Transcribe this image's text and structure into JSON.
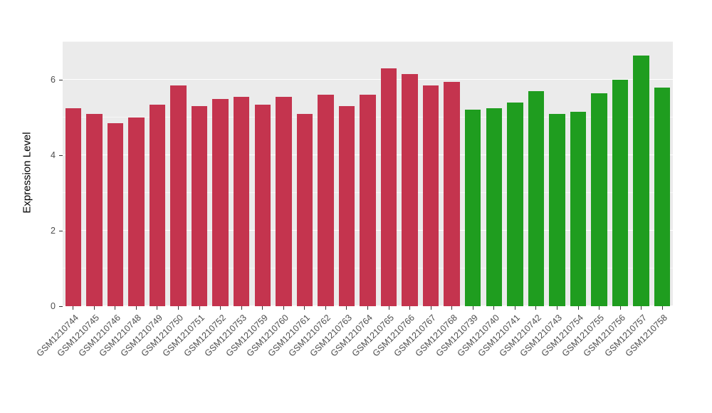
{
  "chart_data": {
    "type": "bar",
    "title": "",
    "xlabel": "",
    "ylabel": "Expression Level",
    "ylim": [
      0,
      7.02
    ],
    "ytick_values": [
      0,
      2,
      4,
      6
    ],
    "ytick_labels": [
      "0",
      "2",
      "4",
      "6"
    ],
    "minor_tick_values": [
      1,
      3,
      5,
      7
    ],
    "grid": true,
    "legend": "none",
    "panel_bg": "#EBEBEB",
    "grid_major_color": "#FFFFFF",
    "grid_minor_color": "#FFFFFF",
    "tick_color": "#333333",
    "axis_label_color": "#4D4D4D",
    "groups": {
      "group1": {
        "color": "#C4344E"
      },
      "group2": {
        "color": "#1F9D1F"
      }
    },
    "bars": [
      {
        "label": "GSM1210744",
        "value": 5.25,
        "group": "group1"
      },
      {
        "label": "GSM1210745",
        "value": 5.1,
        "group": "group1"
      },
      {
        "label": "GSM1210746",
        "value": 4.85,
        "group": "group1"
      },
      {
        "label": "GSM1210748",
        "value": 5.0,
        "group": "group1"
      },
      {
        "label": "GSM1210749",
        "value": 5.35,
        "group": "group1"
      },
      {
        "label": "GSM1210750",
        "value": 5.85,
        "group": "group1"
      },
      {
        "label": "GSM1210751",
        "value": 5.3,
        "group": "group1"
      },
      {
        "label": "GSM1210752",
        "value": 5.5,
        "group": "group1"
      },
      {
        "label": "GSM1210753",
        "value": 5.55,
        "group": "group1"
      },
      {
        "label": "GSM1210759",
        "value": 5.35,
        "group": "group1"
      },
      {
        "label": "GSM1210760",
        "value": 5.55,
        "group": "group1"
      },
      {
        "label": "GSM1210761",
        "value": 5.1,
        "group": "group1"
      },
      {
        "label": "GSM1210762",
        "value": 5.6,
        "group": "group1"
      },
      {
        "label": "GSM1210763",
        "value": 5.3,
        "group": "group1"
      },
      {
        "label": "GSM1210764",
        "value": 5.6,
        "group": "group1"
      },
      {
        "label": "GSM1210765",
        "value": 6.3,
        "group": "group1"
      },
      {
        "label": "GSM1210766",
        "value": 6.15,
        "group": "group1"
      },
      {
        "label": "GSM1210767",
        "value": 5.85,
        "group": "group1"
      },
      {
        "label": "GSM1210768",
        "value": 5.95,
        "group": "group1"
      },
      {
        "label": "GSM1210739",
        "value": 5.2,
        "group": "group2"
      },
      {
        "label": "GSM1210740",
        "value": 5.25,
        "group": "group2"
      },
      {
        "label": "GSM1210741",
        "value": 5.4,
        "group": "group2"
      },
      {
        "label": "GSM1210742",
        "value": 5.7,
        "group": "group2"
      },
      {
        "label": "GSM1210743",
        "value": 5.1,
        "group": "group2"
      },
      {
        "label": "GSM1210754",
        "value": 5.15,
        "group": "group2"
      },
      {
        "label": "GSM1210755",
        "value": 5.65,
        "group": "group2"
      },
      {
        "label": "GSM1210756",
        "value": 6.0,
        "group": "group2"
      },
      {
        "label": "GSM1210757",
        "value": 6.65,
        "group": "group2"
      },
      {
        "label": "GSM1210758",
        "value": 5.8,
        "group": "group2"
      }
    ]
  }
}
